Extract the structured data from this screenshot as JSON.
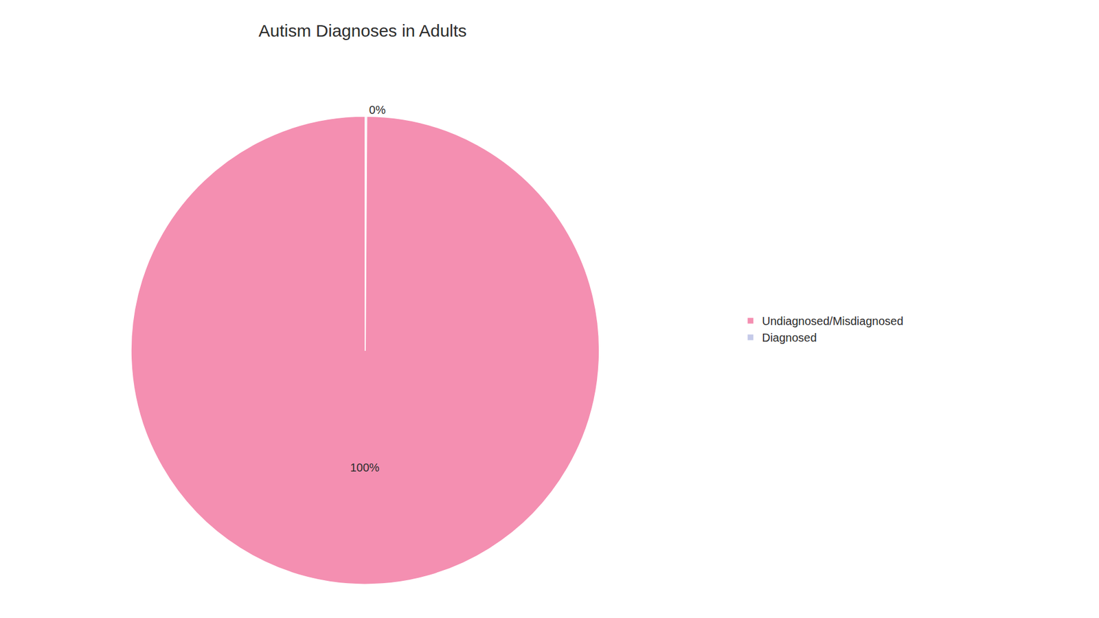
{
  "chart_data": {
    "type": "pie",
    "title": "Autism Diagnoses in Adults",
    "categories": [
      "Diagnosed",
      "Undiagnosed/Misdiagnosed"
    ],
    "values": [
      0.1,
      99.9
    ],
    "value_labels": [
      "0%",
      "100%"
    ],
    "colors": [
      "#c5cae9",
      "#f48fb1"
    ],
    "data_labels": true,
    "legend": "right"
  }
}
